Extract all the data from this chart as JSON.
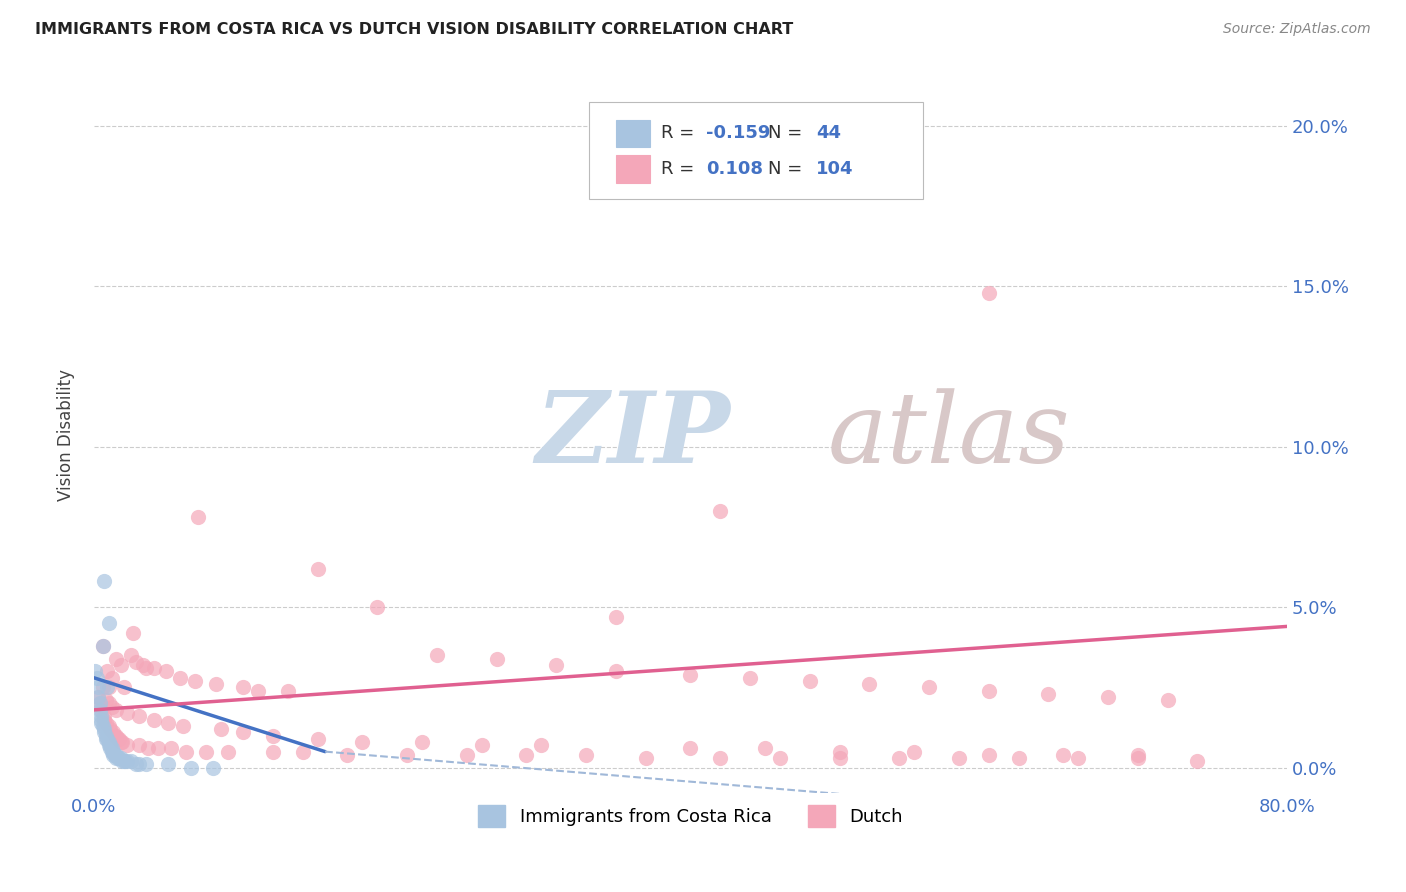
{
  "title": "IMMIGRANTS FROM COSTA RICA VS DUTCH VISION DISABILITY CORRELATION CHART",
  "source": "Source: ZipAtlas.com",
  "ylabel": "Vision Disability",
  "ytick_labels": [
    "0.0%",
    "5.0%",
    "10.0%",
    "15.0%",
    "20.0%"
  ],
  "ytick_values": [
    0.0,
    0.05,
    0.1,
    0.15,
    0.2
  ],
  "xmin": 0.0,
  "xmax": 0.8,
  "ymin": -0.008,
  "ymax": 0.215,
  "legend_label1": "Immigrants from Costa Rica",
  "legend_label2": "Dutch",
  "r1": "-0.159",
  "n1": "44",
  "r2": "0.108",
  "n2": "104",
  "color1": "#a8c4e0",
  "color2": "#f4a7b9",
  "line_color1": "#4472c4",
  "line_color2": "#e06090",
  "line_dash_color1": "#a0b8d8",
  "watermark_zip_color": "#c8d8e8",
  "watermark_atlas_color": "#d8c8c8",
  "axis_label_color": "#4472c4",
  "background": "#ffffff",
  "grid_color": "#cccccc",
  "costa_rica_x": [
    0.001,
    0.002,
    0.003,
    0.003,
    0.004,
    0.004,
    0.005,
    0.005,
    0.005,
    0.006,
    0.006,
    0.007,
    0.007,
    0.007,
    0.008,
    0.008,
    0.009,
    0.009,
    0.01,
    0.01,
    0.01,
    0.011,
    0.011,
    0.012,
    0.012,
    0.013,
    0.013,
    0.014,
    0.015,
    0.015,
    0.016,
    0.017,
    0.018,
    0.019,
    0.02,
    0.021,
    0.022,
    0.025,
    0.028,
    0.03,
    0.035,
    0.05,
    0.065,
    0.08
  ],
  "costa_rica_y": [
    0.03,
    0.028,
    0.025,
    0.022,
    0.02,
    0.018,
    0.016,
    0.015,
    0.014,
    0.013,
    0.038,
    0.012,
    0.011,
    0.058,
    0.01,
    0.009,
    0.009,
    0.025,
    0.008,
    0.007,
    0.045,
    0.007,
    0.006,
    0.006,
    0.005,
    0.005,
    0.004,
    0.004,
    0.004,
    0.003,
    0.003,
    0.003,
    0.003,
    0.002,
    0.002,
    0.002,
    0.002,
    0.002,
    0.001,
    0.001,
    0.001,
    0.001,
    0.0,
    0.0
  ],
  "dutch_x": [
    0.003,
    0.004,
    0.005,
    0.006,
    0.007,
    0.007,
    0.008,
    0.009,
    0.01,
    0.01,
    0.011,
    0.012,
    0.013,
    0.014,
    0.015,
    0.015,
    0.016,
    0.017,
    0.018,
    0.019,
    0.02,
    0.022,
    0.025,
    0.028,
    0.03,
    0.033,
    0.036,
    0.04,
    0.043,
    0.048,
    0.052,
    0.058,
    0.062,
    0.068,
    0.075,
    0.082,
    0.09,
    0.1,
    0.11,
    0.12,
    0.13,
    0.14,
    0.15,
    0.17,
    0.19,
    0.21,
    0.23,
    0.25,
    0.27,
    0.29,
    0.31,
    0.33,
    0.35,
    0.37,
    0.4,
    0.42,
    0.44,
    0.46,
    0.48,
    0.5,
    0.52,
    0.54,
    0.56,
    0.58,
    0.6,
    0.62,
    0.64,
    0.66,
    0.68,
    0.7,
    0.72,
    0.74,
    0.006,
    0.008,
    0.01,
    0.012,
    0.015,
    0.018,
    0.022,
    0.026,
    0.03,
    0.035,
    0.04,
    0.05,
    0.06,
    0.07,
    0.085,
    0.1,
    0.12,
    0.15,
    0.18,
    0.22,
    0.26,
    0.3,
    0.35,
    0.4,
    0.45,
    0.5,
    0.55,
    0.6,
    0.65,
    0.7,
    0.6,
    0.42
  ],
  "dutch_y": [
    0.022,
    0.02,
    0.018,
    0.038,
    0.016,
    0.015,
    0.014,
    0.03,
    0.025,
    0.013,
    0.012,
    0.028,
    0.011,
    0.01,
    0.034,
    0.01,
    0.009,
    0.009,
    0.008,
    0.008,
    0.025,
    0.007,
    0.035,
    0.033,
    0.007,
    0.032,
    0.006,
    0.031,
    0.006,
    0.03,
    0.006,
    0.028,
    0.005,
    0.027,
    0.005,
    0.026,
    0.005,
    0.025,
    0.024,
    0.005,
    0.024,
    0.005,
    0.062,
    0.004,
    0.05,
    0.004,
    0.035,
    0.004,
    0.034,
    0.004,
    0.032,
    0.004,
    0.03,
    0.003,
    0.029,
    0.003,
    0.028,
    0.003,
    0.027,
    0.003,
    0.026,
    0.003,
    0.025,
    0.003,
    0.024,
    0.003,
    0.023,
    0.003,
    0.022,
    0.003,
    0.021,
    0.002,
    0.025,
    0.021,
    0.02,
    0.019,
    0.018,
    0.032,
    0.017,
    0.042,
    0.016,
    0.031,
    0.015,
    0.014,
    0.013,
    0.078,
    0.012,
    0.011,
    0.01,
    0.009,
    0.008,
    0.008,
    0.007,
    0.007,
    0.047,
    0.006,
    0.006,
    0.005,
    0.005,
    0.004,
    0.004,
    0.004,
    0.148,
    0.08
  ],
  "trend1_x0": 0.0,
  "trend1_x1": 0.155,
  "trend1_y0": 0.028,
  "trend1_y1": 0.005,
  "trend1_dash_x0": 0.155,
  "trend1_dash_x1": 0.6,
  "trend1_dash_y0": 0.005,
  "trend1_dash_y1": -0.012,
  "trend2_x0": 0.0,
  "trend2_x1": 0.8,
  "trend2_y0": 0.018,
  "trend2_y1": 0.044
}
